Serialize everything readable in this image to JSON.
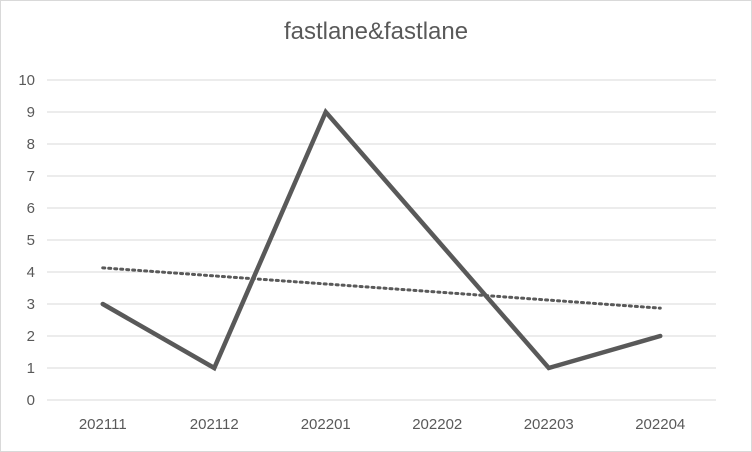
{
  "chart_data": {
    "type": "line",
    "title": "fastlane&fastlane",
    "categories": [
      "202111",
      "202112",
      "202201",
      "202202",
      "202203",
      "202204"
    ],
    "series": [
      {
        "values": [
          3,
          1,
          9,
          5,
          1,
          2
        ],
        "color": "#595959"
      }
    ],
    "trendline": {
      "style": "dotted",
      "color": "#595959",
      "start": 4.13,
      "end": 2.87
    },
    "ylim": [
      0,
      10
    ],
    "yticks": [
      0,
      1,
      2,
      3,
      4,
      5,
      6,
      7,
      8,
      9,
      10
    ],
    "grid": true,
    "legend": "none"
  }
}
